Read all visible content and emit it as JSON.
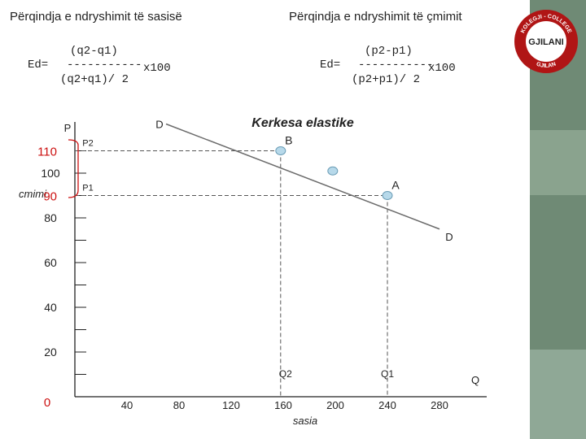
{
  "headings": {
    "left": "Përqindja e ndryshimit të sasisë",
    "right": "Përqindja e ndryshimit të çmimit"
  },
  "formula_left": {
    "prefix": "Ed=",
    "numerator": "(q2-q1)",
    "bar": "-----------",
    "denominator": "(q2+q1)/ 2",
    "multiplier": "x100"
  },
  "formula_right": {
    "prefix": "Ed=",
    "numerator": "(p2-p1)",
    "bar": "-----------",
    "denominator": "(p2+p1)/ 2",
    "multiplier": "x100"
  },
  "logo": {
    "text_top": "KOLEGJI - COLLEGE",
    "text_main": "GJILANI",
    "text_bottom": "GJILAN"
  },
  "colors": {
    "curve": "#6b6b6b",
    "point_fill": "#b7d9ea",
    "point_stroke": "#6a9cb5",
    "red_annotation": "#cc1111",
    "side_strip": "#6f8a75"
  },
  "chart_data": {
    "type": "line",
    "title": "Kerkesa elastike",
    "xlabel": "sasia",
    "ylabel": "P",
    "ylabel_extra": "cmimi",
    "x_axis_end_label": "Q",
    "xlim": [
      0,
      300
    ],
    "ylim": [
      0,
      120
    ],
    "x_ticks": [
      0,
      40,
      80,
      120,
      160,
      200,
      240,
      280
    ],
    "y_ticks": [
      20,
      40,
      60,
      80,
      100
    ],
    "curve_label_start": "D",
    "curve_label_end": "D",
    "curve": [
      [
        70,
        122
      ],
      [
        280,
        75
      ]
    ],
    "points": [
      {
        "label": "B",
        "x": 158,
        "y": 110
      },
      {
        "label": "",
        "x": 198,
        "y": 101
      },
      {
        "label": "A",
        "x": 240,
        "y": 90
      }
    ],
    "reference_lines": [
      {
        "price_label": "P2",
        "quantity_label": "Q2",
        "x": 158,
        "y": 110
      },
      {
        "price_label": "P1",
        "quantity_label": "Q1",
        "x": 240,
        "y": 90
      }
    ],
    "red_annotations": [
      "110",
      "90"
    ],
    "red_origin_label": "0"
  }
}
